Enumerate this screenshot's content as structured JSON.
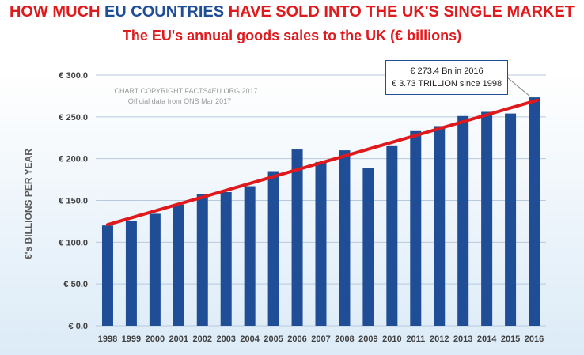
{
  "header": {
    "title_part1": "HOW MUCH ",
    "title_part2": "EU COUNTRIES",
    "title_part3": " HAVE SOLD INTO THE UK'S SINGLE MARKET",
    "subtitle": "The EU's annual goods sales to the UK (€ billions)"
  },
  "copyright": {
    "line1": "CHART COPYRIGHT FACTS4EU.ORG 2017",
    "line2": "Official data from ONS Mar 2017"
  },
  "annotation": {
    "line1": "€ 273.4 Bn in 2016",
    "line2": "€ 3.73 TRILLION since 1998"
  },
  "colors": {
    "bar": "#1f4e96",
    "trend": "#e0191d",
    "title": "#e0191d",
    "title_highlight": "#1f4e96"
  },
  "chart_data": {
    "type": "bar",
    "ylabel": "€'s BILLIONS PER YEAR",
    "xlabel": "",
    "ylim": [
      0,
      300
    ],
    "yticks": [
      0,
      50,
      100,
      150,
      200,
      250,
      300
    ],
    "ytick_labels": [
      "€ 0.0",
      "€ 50.0",
      "€ 100.0",
      "€ 150.0",
      "€ 200.0",
      "€ 250.0",
      "€ 300.0"
    ],
    "grid": true,
    "categories": [
      "1998",
      "1999",
      "2000",
      "2001",
      "2002",
      "2003",
      "2004",
      "2005",
      "2006",
      "2007",
      "2008",
      "2009",
      "2010",
      "2011",
      "2012",
      "2013",
      "2014",
      "2015",
      "2016"
    ],
    "values": [
      120,
      125,
      134,
      145,
      158,
      160,
      167,
      185,
      211,
      196,
      210,
      189,
      215,
      233,
      239,
      251,
      256,
      254,
      273.4
    ],
    "trendline": {
      "start": [
        1998,
        121
      ],
      "end": [
        2016,
        270
      ]
    }
  }
}
